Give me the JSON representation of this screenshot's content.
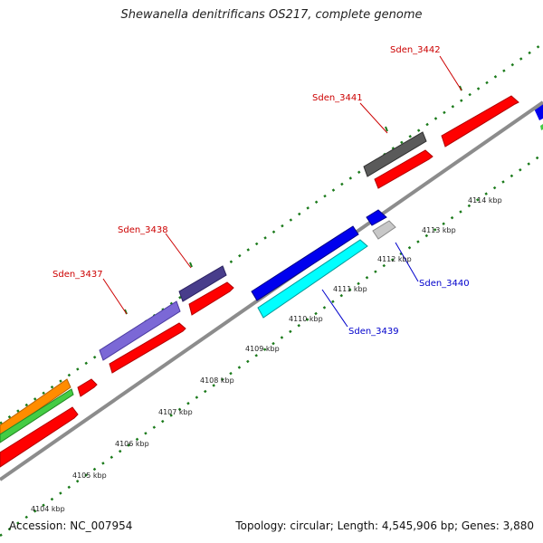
{
  "title": "Shewanella denitrificans OS217, complete genome",
  "footer": {
    "accession": "Accession: NC_007954",
    "summary": "Topology: circular; Length: 4,545,906 bp; Genes: 3,880"
  },
  "scale_ticks": [
    "4104 kbp",
    "4105 kbp",
    "4106 kbp",
    "4107 kbp",
    "4108 kbp",
    "4109 kbp",
    "4110 kbp",
    "4111 kbp",
    "4112 kbp",
    "4113 kbp",
    "4114 kbp"
  ],
  "gene_labels": {
    "sden_3437": "Sden_3437",
    "sden_3438": "Sden_3438",
    "sden_3439": "Sden_3439",
    "sden_3440": "Sden_3440",
    "sden_3441": "Sden_3441",
    "sden_3442": "Sden_3442"
  },
  "colors": {
    "backbone": "#8c8c8c",
    "tick": "#1a7a1a",
    "cds": "#ff0000",
    "label_forward": "#cc0000",
    "label_reverse": "#0000cc",
    "purple": "#7b68d6",
    "dark_slate": "#483d8b",
    "dark_gray": "#555555",
    "blue": "#0000ee",
    "cyan": "#00ffff",
    "light_gray": "#c8c8c8",
    "orange": "#ff8c00",
    "green": "#44cc44"
  }
}
